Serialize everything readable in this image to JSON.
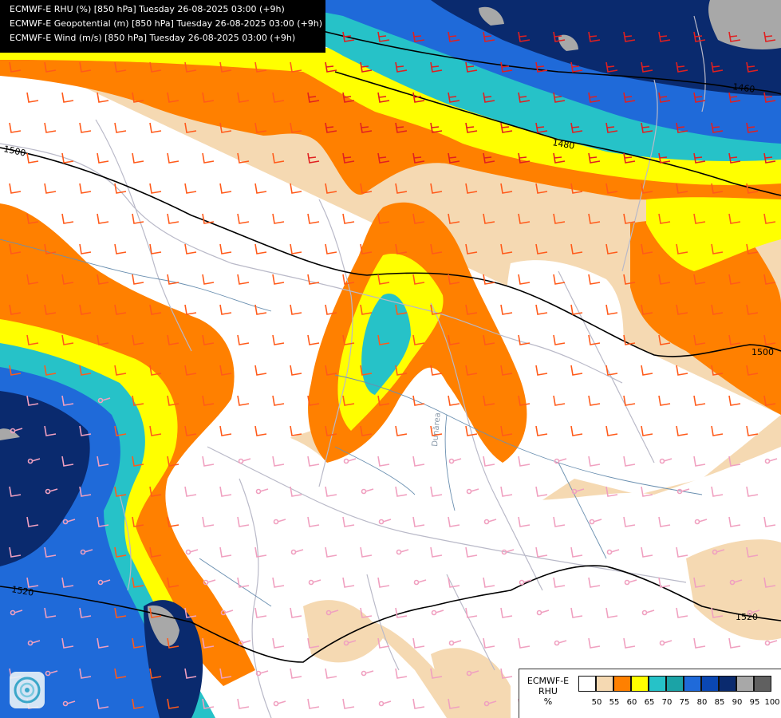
{
  "header": {
    "line1": "ECMWF-E RHU (%) [850 hPa] Tuesday 26-08-2025 03:00 (+9h)",
    "line2": "ECMWF-E Geopotential (m) [850 hPa] Tuesday 26-08-2025 03:00 (+9h)",
    "line3": "ECMWF-E Wind (m/s) [850 hPa] Tuesday 26-08-2025 03:00 (+9h)"
  },
  "contours": {
    "c1460": "1460",
    "c1480": "1480",
    "c1500a": "1500",
    "c1500b": "1500",
    "c1520a": "1520",
    "c1520b": "1520"
  },
  "place_label": "Dunărea",
  "legend": {
    "title_line1": "ECMWF-E",
    "title_line2": "RHU",
    "title_line3": "%",
    "colors": [
      "#ffffff",
      "#f5d9b2",
      "#ff8000",
      "#ffff00",
      "#26c2c8",
      "#1ba3a6",
      "#1f6ad9",
      "#0a47b3",
      "#0a2a6e",
      "#a8a8a8",
      "#606060"
    ],
    "ticks": [
      "50",
      "55",
      "60",
      "65",
      "70",
      "75",
      "80",
      "85",
      "90",
      "95",
      "100"
    ]
  },
  "palette": {
    "tan": "#f5d9b2",
    "orange": "#ff8000",
    "yellow": "#ffff00",
    "cyan": "#26c2c8",
    "teal": "#1ba3a6",
    "blue": "#1f6ad9",
    "midblue": "#0a47b3",
    "navy": "#0a2a6e",
    "gray": "#a8a8a8",
    "contour": "#000000",
    "barb_orange": "#ff5a1a",
    "barb_red": "#e02020",
    "barb_pink": "#f0a0c0",
    "border": "#b9b9c8",
    "river": "#6a8fb0"
  },
  "logo": "weather-logo-icon"
}
